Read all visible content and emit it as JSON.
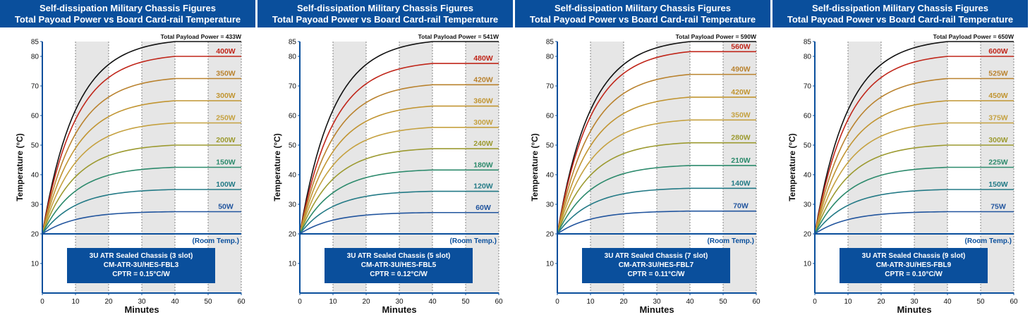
{
  "colors": {
    "header_bg": "#0a4f9c",
    "box_bg": "#0a4f9c",
    "shade": "#e6e6e6",
    "axis": "#0a4f9c",
    "room": "#0a4f9c",
    "black": "#111111",
    "p400": "#c0261a",
    "p350": "#b9822e",
    "p300": "#c19532",
    "p250": "#c5a140",
    "p200": "#9c9a30",
    "p150": "#2c8a6c",
    "p100": "#237a86",
    "p50": "#22559e"
  },
  "chart_data": [
    {
      "type": "line",
      "title": "Self-dissipation Military Chassis Figures",
      "subtitle": "Total Payoad Power vs Board Card-rail Temperature",
      "xlabel": "Minutes",
      "ylabel": "Temperature (°C)",
      "xlim": [
        0,
        60
      ],
      "ylim": [
        0,
        85
      ],
      "x_ticks": [
        0,
        10,
        20,
        30,
        40,
        50,
        60
      ],
      "y_ticks": [
        10,
        20,
        30,
        40,
        50,
        60,
        70,
        80,
        85
      ],
      "room_temp_label": "(Room Temp.)",
      "room_temp": 20,
      "total_label": "Total Payload Power = 433W",
      "total_max": 85,
      "box": [
        "3U ATR Sealed Chassis (3 slot)",
        "CM-ATR-3U/HES-FBL3",
        "CPTR = 0.15°C/W"
      ],
      "series": [
        {
          "name": "400W",
          "max": 80
        },
        {
          "name": "350W",
          "max": 72.5
        },
        {
          "name": "300W",
          "max": 65
        },
        {
          "name": "250W",
          "max": 57.5
        },
        {
          "name": "200W",
          "max": 50
        },
        {
          "name": "150W",
          "max": 42.5
        },
        {
          "name": "100W",
          "max": 35
        },
        {
          "name": "50W",
          "max": 27.5
        }
      ]
    },
    {
      "type": "line",
      "title": "Self-dissipation Military Chassis Figures",
      "subtitle": "Total Payoad Power vs Board Card-rail Temperature",
      "xlabel": "Minutes",
      "ylabel": "Temperature (°C)",
      "xlim": [
        0,
        60
      ],
      "ylim": [
        0,
        85
      ],
      "x_ticks": [
        0,
        10,
        20,
        30,
        40,
        50,
        60
      ],
      "y_ticks": [
        10,
        20,
        30,
        40,
        50,
        60,
        70,
        80,
        85
      ],
      "room_temp_label": "(Room Temp.)",
      "room_temp": 20,
      "total_label": "Total Payload Power = 541W",
      "total_max": 85,
      "box": [
        "3U ATR Sealed Chassis (5 slot)",
        "CM-ATR-3U/HES-FBL5",
        "CPTR = 0.12°C/W"
      ],
      "series": [
        {
          "name": "480W",
          "max": 77.6
        },
        {
          "name": "420W",
          "max": 70.4
        },
        {
          "name": "360W",
          "max": 63.2
        },
        {
          "name": "300W",
          "max": 56
        },
        {
          "name": "240W",
          "max": 48.8
        },
        {
          "name": "180W",
          "max": 41.6
        },
        {
          "name": "120W",
          "max": 34.4
        },
        {
          "name": "60W",
          "max": 27.2
        }
      ]
    },
    {
      "type": "line",
      "title": "Self-dissipation Military Chassis Figures",
      "subtitle": "Total Payoad Power vs Board Card-rail Temperature",
      "xlabel": "Minutes",
      "ylabel": "Temperature (°C)",
      "xlim": [
        0,
        60
      ],
      "ylim": [
        0,
        85
      ],
      "x_ticks": [
        0,
        10,
        20,
        30,
        40,
        50,
        60
      ],
      "y_ticks": [
        10,
        20,
        30,
        40,
        50,
        60,
        70,
        80,
        85
      ],
      "room_temp_label": "(Room Temp.)",
      "room_temp": 20,
      "total_label": "Total Payload Power = 590W",
      "total_max": 85,
      "box": [
        "3U ATR Sealed Chassis (7 slot)",
        "CM-ATR-3U/HES-FBL7",
        "CPTR = 0.11°C/W"
      ],
      "series": [
        {
          "name": "560W",
          "max": 81.6
        },
        {
          "name": "490W",
          "max": 73.9
        },
        {
          "name": "420W",
          "max": 66.2
        },
        {
          "name": "350W",
          "max": 58.5
        },
        {
          "name": "280W",
          "max": 50.8
        },
        {
          "name": "210W",
          "max": 43.1
        },
        {
          "name": "140W",
          "max": 35.4
        },
        {
          "name": "70W",
          "max": 27.7
        }
      ]
    },
    {
      "type": "line",
      "title": "Self-dissipation Military Chassis Figures",
      "subtitle": "Total Payoad Power vs Board Card-rail Temperature",
      "xlabel": "Minutes",
      "ylabel": "Temperature (°C)",
      "xlim": [
        0,
        60
      ],
      "ylim": [
        0,
        85
      ],
      "x_ticks": [
        0,
        10,
        20,
        30,
        40,
        50,
        60
      ],
      "y_ticks": [
        10,
        20,
        30,
        40,
        50,
        60,
        70,
        80,
        85
      ],
      "room_temp_label": "(Room Temp.)",
      "room_temp": 20,
      "total_label": "Total Payload Power = 650W",
      "total_max": 85,
      "box": [
        "3U ATR Sealed Chassis (9 slot)",
        "CM-ATR-3U/HES-FBL9",
        "CPTR = 0.10°C/W"
      ],
      "series": [
        {
          "name": "600W",
          "max": 80
        },
        {
          "name": "525W",
          "max": 72.5
        },
        {
          "name": "450W",
          "max": 65
        },
        {
          "name": "375W",
          "max": 57.5
        },
        {
          "name": "300W",
          "max": 50
        },
        {
          "name": "225W",
          "max": 42.5
        },
        {
          "name": "150W",
          "max": 35
        },
        {
          "name": "75W",
          "max": 27.5
        }
      ]
    }
  ]
}
